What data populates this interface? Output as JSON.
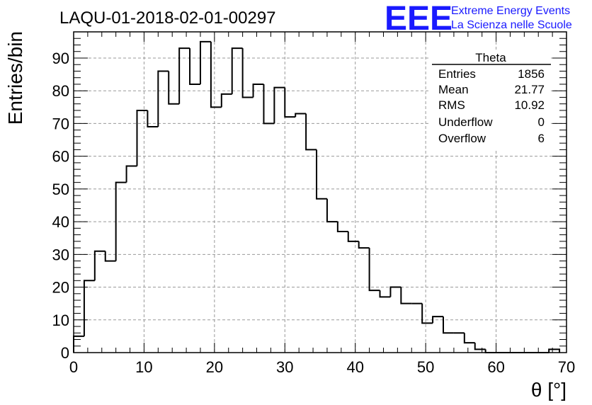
{
  "chart_data": {
    "type": "bar",
    "title": "LAQU-01-2018-02-01-00297",
    "xlabel": "θ [°]",
    "ylabel": "Entries/bin",
    "xlim": [
      0,
      70
    ],
    "ylim": [
      0,
      98
    ],
    "bin_width": 1.5,
    "x_ticks": [
      "0",
      "10",
      "20",
      "30",
      "40",
      "50",
      "60",
      "70"
    ],
    "y_ticks": [
      "0",
      "10",
      "20",
      "30",
      "40",
      "50",
      "60",
      "70",
      "80",
      "90"
    ],
    "grid": true,
    "bins": [
      {
        "x": 0.0,
        "y": 5
      },
      {
        "x": 1.5,
        "y": 22
      },
      {
        "x": 3.0,
        "y": 31
      },
      {
        "x": 4.5,
        "y": 28
      },
      {
        "x": 6.0,
        "y": 52
      },
      {
        "x": 7.5,
        "y": 57
      },
      {
        "x": 9.0,
        "y": 74
      },
      {
        "x": 10.5,
        "y": 69
      },
      {
        "x": 12.0,
        "y": 86
      },
      {
        "x": 13.5,
        "y": 76
      },
      {
        "x": 15.0,
        "y": 93
      },
      {
        "x": 16.5,
        "y": 82
      },
      {
        "x": 18.0,
        "y": 95
      },
      {
        "x": 19.5,
        "y": 75
      },
      {
        "x": 21.0,
        "y": 79
      },
      {
        "x": 22.5,
        "y": 93
      },
      {
        "x": 24.0,
        "y": 78
      },
      {
        "x": 25.5,
        "y": 82
      },
      {
        "x": 27.0,
        "y": 70
      },
      {
        "x": 28.5,
        "y": 81
      },
      {
        "x": 30.0,
        "y": 72
      },
      {
        "x": 31.5,
        "y": 73
      },
      {
        "x": 33.0,
        "y": 62
      },
      {
        "x": 34.5,
        "y": 47
      },
      {
        "x": 36.0,
        "y": 40
      },
      {
        "x": 37.5,
        "y": 37
      },
      {
        "x": 39.0,
        "y": 34
      },
      {
        "x": 40.5,
        "y": 32
      },
      {
        "x": 42.0,
        "y": 19
      },
      {
        "x": 43.5,
        "y": 17
      },
      {
        "x": 45.0,
        "y": 20
      },
      {
        "x": 46.5,
        "y": 15
      },
      {
        "x": 48.0,
        "y": 15
      },
      {
        "x": 49.5,
        "y": 9
      },
      {
        "x": 51.0,
        "y": 11
      },
      {
        "x": 52.5,
        "y": 6
      },
      {
        "x": 54.0,
        "y": 6
      },
      {
        "x": 55.5,
        "y": 3
      },
      {
        "x": 57.0,
        "y": 1
      },
      {
        "x": 58.5,
        "y": 0
      },
      {
        "x": 60.0,
        "y": 0
      },
      {
        "x": 61.5,
        "y": 0
      },
      {
        "x": 63.0,
        "y": 0
      },
      {
        "x": 64.5,
        "y": 0
      },
      {
        "x": 66.0,
        "y": 0
      },
      {
        "x": 67.5,
        "y": 1
      }
    ],
    "stats_box": {
      "name": "Theta",
      "rows": [
        {
          "label": "Entries",
          "value": "1856"
        },
        {
          "label": "Mean",
          "value": "21.77"
        },
        {
          "label": "RMS",
          "value": "10.92"
        },
        {
          "label": "Underflow",
          "value": "0"
        },
        {
          "label": "Overflow",
          "value": "6"
        }
      ]
    }
  },
  "logo": {
    "mark": "EEE",
    "line1": "Extreme Energy Events",
    "line2": "La Scienza nelle Scuole",
    "color": "#1a1aff"
  }
}
